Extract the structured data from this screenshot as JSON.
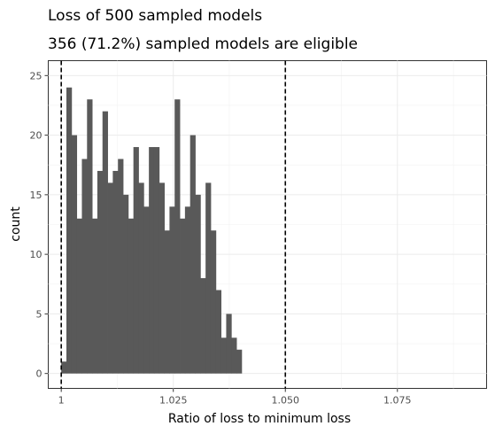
{
  "chart_data": {
    "type": "bar",
    "title": "Loss of 500 sampled models",
    "subtitle": "356 (71.2%) sampled models are eligible",
    "xlabel": "Ratio of loss to minimum loss",
    "ylabel": "count",
    "xlim": [
      0.9971,
      1.0949
    ],
    "ylim": [
      -1.25,
      26.25
    ],
    "x_ticks": [
      1.0,
      1.025,
      1.05,
      1.075
    ],
    "x_tick_labels": [
      "1",
      "1.025",
      "1.050",
      "1.075"
    ],
    "y_ticks": [
      0,
      5,
      10,
      15,
      20,
      25
    ],
    "y_tick_labels": [
      "0",
      "5",
      "10",
      "15",
      "20",
      "25"
    ],
    "bin_width": 0.00115,
    "bin_start": 1.0,
    "values": [
      1,
      24,
      20,
      13,
      18,
      23,
      13,
      17,
      22,
      16,
      17,
      18,
      15,
      13,
      19,
      16,
      14,
      19,
      19,
      16,
      12,
      14,
      23,
      13,
      14,
      20,
      15,
      8,
      16,
      12,
      7,
      3,
      5,
      3,
      2
    ],
    "reference_lines": [
      1.0,
      1.05
    ],
    "grid": true,
    "bar_color": "#595959",
    "reference_line_color": "#000000"
  }
}
